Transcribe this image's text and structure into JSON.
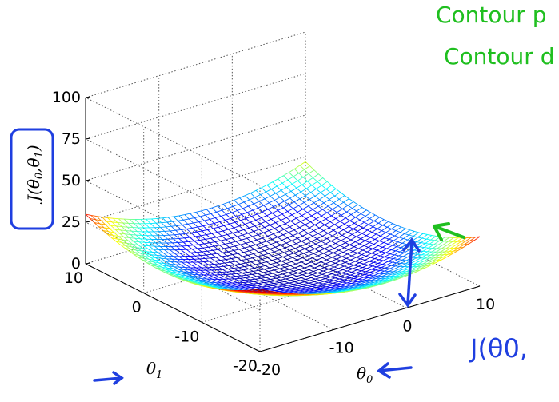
{
  "chart_data": {
    "type": "surface",
    "function": "J(theta0, theta1) = a*(theta0 - c0)^2 + b*(theta1 - c1)^2",
    "x": {
      "name": "theta0",
      "range": [
        -20,
        10
      ],
      "ticks": [
        -20,
        -10,
        0,
        10
      ]
    },
    "y": {
      "name": "theta1",
      "range": [
        -20,
        10
      ],
      "ticks": [
        -20,
        -10,
        0,
        10
      ]
    },
    "z": {
      "range": [
        0,
        100
      ],
      "ticks": [
        0,
        25,
        50,
        75,
        100
      ]
    },
    "surface": {
      "a": 0.065,
      "b": 0.065,
      "c0": -3,
      "c1": -3,
      "grid_lines": 40
    },
    "colormap": [
      "#000090",
      "#0000ff",
      "#00ffff",
      "#ffff00",
      "#ff0000",
      "#800000"
    ],
    "mesh": true,
    "grid": true
  },
  "labels": {
    "z_label_base": "J",
    "z_label_args": "(θ",
    "z_label_sub0": "0",
    "z_label_mid": ",θ",
    "z_label_sub1": "1",
    "z_label_end": ")",
    "x_label": "θ",
    "x_sub": "0",
    "y_label": "θ",
    "y_sub": "1"
  },
  "annotations": {
    "green_line_1": "Contour p",
    "green_line_2": "Contour d",
    "blue_bottom": "J(θ0,"
  },
  "colors": {
    "green": "#1fbf1f",
    "blue": "#1f3fe0"
  }
}
